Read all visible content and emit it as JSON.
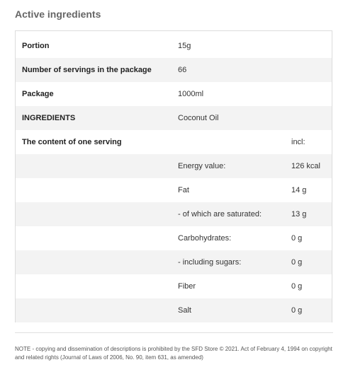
{
  "section_title": "Active ingredients",
  "table": {
    "rows": [
      {
        "c1": "Portion",
        "c2": "15g",
        "c3": ""
      },
      {
        "c1": "Number of servings in the package",
        "c2": "66",
        "c3": ""
      },
      {
        "c1": "Package",
        "c2": "1000ml",
        "c3": ""
      },
      {
        "c1": "INGREDIENTS",
        "c2": "Coconut Oil",
        "c3": ""
      },
      {
        "c1": "The content of one serving",
        "c2": "",
        "c3": "incl:"
      },
      {
        "c1": "",
        "c2": "Energy value:",
        "c3": "126 kcal"
      },
      {
        "c1": "",
        "c2": "Fat",
        "c3": "14 g"
      },
      {
        "c1": "",
        "c2": "- of which are saturated:",
        "c3": "13 g"
      },
      {
        "c1": "",
        "c2": "Carbohydrates:",
        "c3": "0 g"
      },
      {
        "c1": "",
        "c2": "- including sugars:",
        "c3": "0 g"
      },
      {
        "c1": "",
        "c2": "Fiber",
        "c3": "0 g"
      },
      {
        "c1": "",
        "c2": "Salt",
        "c3": "0 g"
      }
    ]
  },
  "note": "NOTE - copying and dissemination of descriptions is prohibited by the SFD Store © 2021. Act of February 4, 1994 on copyright and related rights (Journal of Laws of 2006, No. 90, item 631, as amended)"
}
